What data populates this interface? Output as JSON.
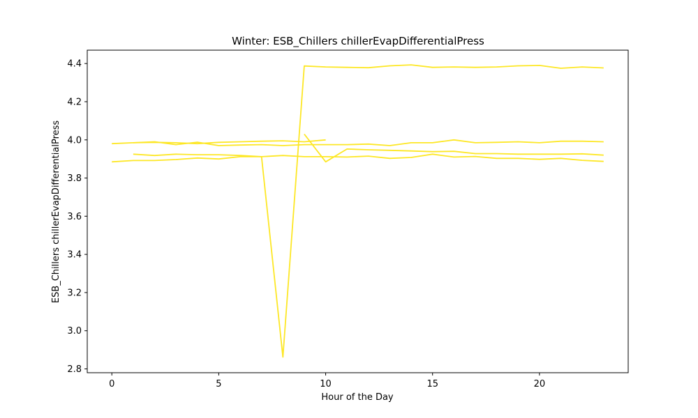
{
  "chart_data": {
    "type": "line",
    "title": "Winter: ESB_Chillers chillerEvapDifferentialPress",
    "xlabel": "Hour of the Day",
    "ylabel": "ESB_Chillers chillerEvapDifferentialPress",
    "xlim": [
      -1.15,
      24.15
    ],
    "ylim": [
      2.78,
      4.47
    ],
    "xticks": [
      0,
      5,
      10,
      15,
      20
    ],
    "yticks": [
      2.8,
      3.0,
      3.2,
      3.4,
      3.6,
      3.8,
      4.0,
      4.2,
      4.4
    ],
    "xtick_labels": [
      "0",
      "5",
      "10",
      "15",
      "20"
    ],
    "ytick_labels": [
      "2.8",
      "3.0",
      "3.2",
      "3.4",
      "3.6",
      "3.8",
      "4.0",
      "4.2",
      "4.4"
    ],
    "line_color": "#fde725",
    "grid": false,
    "legend": "none",
    "series": [
      {
        "x": [
          0,
          1,
          2,
          3,
          4,
          5,
          6,
          7,
          8,
          9,
          10,
          11,
          12,
          13,
          14,
          15,
          16,
          17,
          18,
          19,
          20,
          21,
          22,
          23
        ],
        "y": [
          3.885,
          3.892,
          3.892,
          3.897,
          3.905,
          3.9,
          3.912,
          3.912,
          3.918,
          3.912,
          3.912,
          3.91,
          3.915,
          3.903,
          3.908,
          3.925,
          3.91,
          3.913,
          3.903,
          3.903,
          3.898,
          3.903,
          3.893,
          3.887
        ]
      },
      {
        "x": [
          0,
          1,
          2,
          3,
          4,
          5,
          6,
          7,
          8,
          9,
          10
        ],
        "y": [
          3.98,
          3.985,
          3.987,
          3.985,
          3.98,
          3.987,
          3.99,
          3.993,
          3.995,
          3.99,
          4.0
        ]
      },
      {
        "x": [
          1,
          2,
          3,
          4,
          5,
          6,
          7,
          8,
          9,
          10,
          11,
          12,
          13,
          14,
          15,
          16,
          17,
          18,
          19,
          20,
          21,
          22,
          23
        ],
        "y": [
          3.985,
          3.99,
          3.975,
          3.988,
          3.97,
          3.973,
          3.975,
          3.97,
          3.975,
          3.975,
          3.975,
          3.978,
          3.97,
          3.985,
          3.985,
          4.0,
          3.985,
          3.987,
          3.99,
          3.985,
          3.993,
          3.993,
          3.99
        ]
      },
      {
        "x": [
          1,
          2,
          3,
          4,
          5,
          6,
          7,
          8,
          9,
          10,
          11,
          12,
          13,
          14,
          15,
          16,
          17,
          18,
          19,
          20,
          21,
          22,
          23
        ],
        "y": [
          3.925,
          3.918,
          3.925,
          3.922,
          3.922,
          3.918,
          3.912,
          2.862,
          4.387,
          4.382,
          4.38,
          4.378,
          4.388,
          4.393,
          4.38,
          4.382,
          4.38,
          4.382,
          4.388,
          4.39,
          4.375,
          4.382,
          4.377
        ]
      },
      {
        "x": [
          9,
          10,
          11,
          12,
          13,
          14,
          15,
          16,
          17,
          18,
          19,
          20,
          21,
          22,
          23
        ],
        "y": [
          4.03,
          3.885,
          3.952,
          3.948,
          3.945,
          3.942,
          3.938,
          3.94,
          3.928,
          3.928,
          3.925,
          3.925,
          3.925,
          3.927,
          3.92
        ]
      }
    ]
  }
}
